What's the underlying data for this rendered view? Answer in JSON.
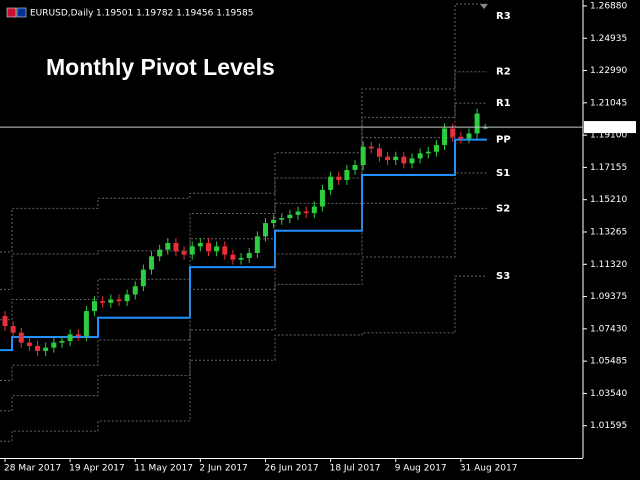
{
  "chart_data": {
    "type": "candlestick",
    "title": "Monthly Pivot Levels",
    "symbol": "EURUSD,Daily",
    "header_ohlc": "1.19501 1.19782 1.19456 1.19585",
    "up_color": "#2ecc40",
    "down_color": "#e8303a",
    "open": [
      1.082,
      1.076,
      1.072,
      1.066,
      1.064,
      1.061,
      1.063,
      1.066,
      1.067,
      1.071,
      1.07,
      1.085,
      1.091,
      1.09,
      1.092,
      1.091,
      1.095,
      1.1,
      1.11,
      1.118,
      1.122,
      1.126,
      1.121,
      1.119,
      1.124,
      1.126,
      1.121,
      1.124,
      1.119,
      1.116,
      1.117,
      1.12,
      1.13,
      1.138,
      1.14,
      1.141,
      1.143,
      1.145,
      1.144,
      1.148,
      1.158,
      1.166,
      1.164,
      1.17,
      1.173,
      1.184,
      1.183,
      1.178,
      1.176,
      1.178,
      1.174,
      1.177,
      1.18,
      1.181,
      1.185,
      1.195,
      1.19,
      1.189,
      1.192,
      1.19501
    ],
    "high": [
      1.085,
      1.079,
      1.075,
      1.069,
      1.067,
      1.066,
      1.069,
      1.07,
      1.074,
      1.074,
      1.088,
      1.094,
      1.094,
      1.095,
      1.095,
      1.098,
      1.103,
      1.113,
      1.121,
      1.125,
      1.129,
      1.129,
      1.124,
      1.127,
      1.129,
      1.129,
      1.127,
      1.127,
      1.122,
      1.12,
      1.123,
      1.133,
      1.141,
      1.143,
      1.144,
      1.146,
      1.148,
      1.148,
      1.151,
      1.161,
      1.169,
      1.169,
      1.173,
      1.176,
      1.187,
      1.187,
      1.186,
      1.181,
      1.181,
      1.181,
      1.18,
      1.183,
      1.184,
      1.188,
      1.198,
      1.198,
      1.193,
      1.195,
      1.207,
      1.19782
    ],
    "low": [
      1.073,
      1.069,
      1.063,
      1.061,
      1.058,
      1.058,
      1.06,
      1.063,
      1.064,
      1.067,
      1.067,
      1.082,
      1.087,
      1.087,
      1.088,
      1.088,
      1.092,
      1.097,
      1.107,
      1.115,
      1.119,
      1.118,
      1.116,
      1.116,
      1.121,
      1.118,
      1.118,
      1.116,
      1.113,
      1.113,
      1.114,
      1.117,
      1.127,
      1.135,
      1.137,
      1.138,
      1.14,
      1.141,
      1.141,
      1.145,
      1.155,
      1.161,
      1.161,
      1.167,
      1.17,
      1.18,
      1.175,
      1.173,
      1.173,
      1.171,
      1.171,
      1.174,
      1.177,
      1.178,
      1.182,
      1.187,
      1.186,
      1.186,
      1.189,
      1.19456
    ],
    "close": [
      1.076,
      1.072,
      1.066,
      1.064,
      1.061,
      1.063,
      1.066,
      1.067,
      1.071,
      1.07,
      1.085,
      1.091,
      1.09,
      1.092,
      1.091,
      1.095,
      1.1,
      1.11,
      1.118,
      1.122,
      1.126,
      1.121,
      1.119,
      1.124,
      1.126,
      1.121,
      1.124,
      1.119,
      1.116,
      1.117,
      1.12,
      1.13,
      1.138,
      1.14,
      1.141,
      1.143,
      1.145,
      1.144,
      1.148,
      1.158,
      1.166,
      1.164,
      1.17,
      1.173,
      1.184,
      1.183,
      1.178,
      1.176,
      1.178,
      1.174,
      1.177,
      1.18,
      1.181,
      1.185,
      1.195,
      1.19,
      1.189,
      1.192,
      1.204,
      1.19585
    ],
    "pivots": [
      {
        "name": "R3",
        "color": "#8a98a8",
        "values": [
          1.1206,
          1.1469,
          1.153,
          1.156,
          1.1804,
          1.2188,
          1.27
        ]
      },
      {
        "name": "R2",
        "color": "#8a98a8",
        "values": [
          1.0981,
          1.1194,
          1.1213,
          1.1438,
          1.1652,
          1.2017,
          1.2292
        ]
      },
      {
        "name": "R1",
        "color": "#8a98a8",
        "values": [
          1.0798,
          1.092,
          1.1042,
          1.1286,
          1.1499,
          1.1895,
          1.2103
        ]
      },
      {
        "name": "PP",
        "color": "#1e90ff",
        "values": [
          1.0615,
          1.0694,
          1.081,
          1.1115,
          1.1334,
          1.167,
          1.1883
        ]
      },
      {
        "name": "S1",
        "color": "#8a98a8",
        "values": [
          1.0432,
          1.0524,
          1.0676,
          1.0981,
          1.1194,
          1.1499,
          1.1682
        ]
      },
      {
        "name": "S2",
        "color": "#8a98a8",
        "values": [
          1.0249,
          1.0341,
          1.0463,
          1.0737,
          1.1011,
          1.1176,
          1.1469
        ]
      },
      {
        "name": "S3",
        "color": "#8a98a8",
        "values": [
          1.0066,
          1.0127,
          1.0188,
          1.0554,
          1.0706,
          1.0719,
          1.106
        ]
      }
    ],
    "last_price": 1.19585,
    "ylim": [
      0.9965,
      1.2724
    ],
    "yticks": [
      {
        "value": 1.2688,
        "label": "1.26880"
      },
      {
        "value": 1.24935,
        "label": "1.24935"
      },
      {
        "value": 1.2299,
        "label": "1.22990"
      },
      {
        "value": 1.21045,
        "label": "1.21045"
      },
      {
        "value": 1.191,
        "label": "1.19100"
      },
      {
        "value": 1.17155,
        "label": "1.17155"
      },
      {
        "value": 1.1521,
        "label": "1.15210"
      },
      {
        "value": 1.13265,
        "label": "1.13265"
      },
      {
        "value": 1.1132,
        "label": "1.11320"
      },
      {
        "value": 1.09375,
        "label": "1.09375"
      },
      {
        "value": 1.0743,
        "label": "1.07430"
      },
      {
        "value": 1.05485,
        "label": "1.05485"
      },
      {
        "value": 1.0354,
        "label": "1.03540"
      },
      {
        "value": 1.01595,
        "label": "1.01595"
      }
    ],
    "xticks": [
      {
        "value": 0,
        "label": "28 Mar 2017"
      },
      {
        "value": 8,
        "label": "19 Apr 2017"
      },
      {
        "value": 16,
        "label": "11 May 2017"
      },
      {
        "value": 24,
        "label": "2 Jun 2017"
      },
      {
        "value": 32,
        "label": "26 Jun 2017"
      },
      {
        "value": 40,
        "label": "18 Jul 2017"
      },
      {
        "value": 48,
        "label": "9 Aug 2017"
      },
      {
        "value": 56,
        "label": "31 Aug 2017"
      }
    ]
  }
}
